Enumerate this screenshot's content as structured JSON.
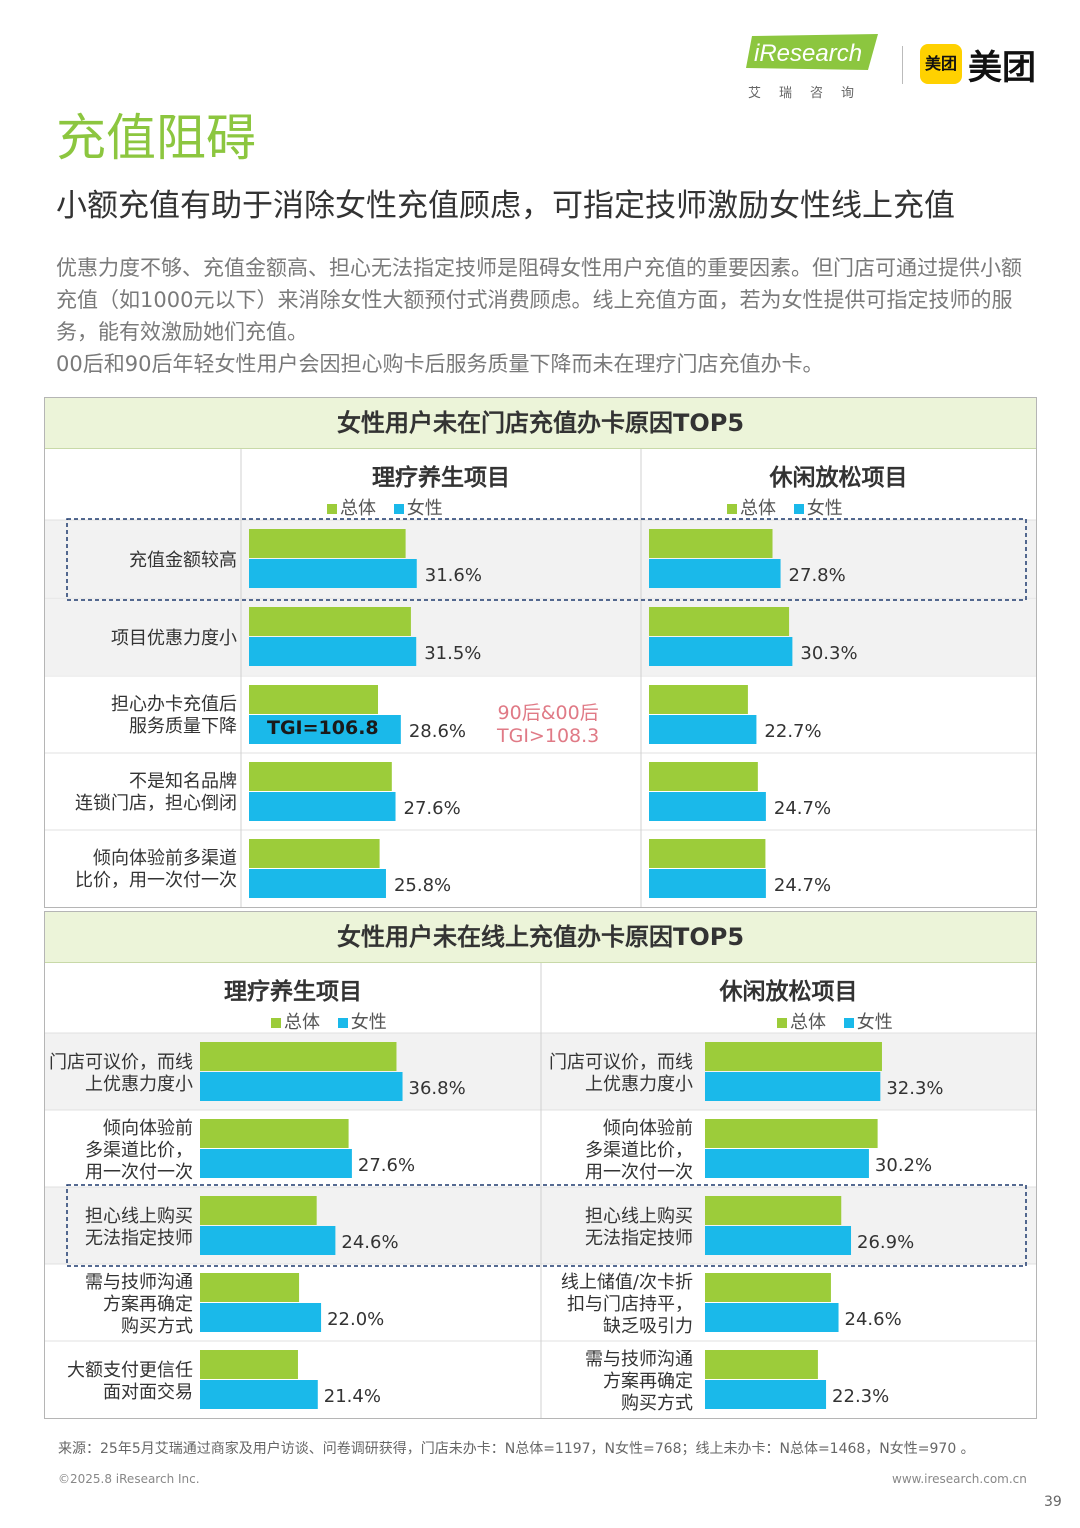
{
  "header": {
    "ir_logo": "iResearch",
    "ir_sub": "艾瑞咨询",
    "mt_badge": "美团",
    "mt_text": "美团"
  },
  "title": "充值阻碍",
  "subtitle": "小额充值有助于消除女性充值顾虑，可指定技师激励女性线上充值",
  "body": [
    "优惠力度不够、充值金额高、担心无法指定技师是阻碍女性用户充值的重要因素。但门店可通过提供小额充值（如1000元以下）来消除女性大额预付式消费顾虑。线上充值方面，若为女性提供可指定技师的服务，能有效激励她们充值。",
    "00后和90后年轻女性用户会因担心购卡后服务质量下降而未在理疗门店充值办卡。"
  ],
  "colors": {
    "overall": "#9ccc3a",
    "female": "#1ab9ea",
    "title_green": "#8cc63f",
    "highlight": "#1e3a6e"
  },
  "legend": {
    "overall": "总体",
    "female": "女性"
  },
  "chart_data": [
    {
      "type": "bar",
      "title": "女性用户未在门店充值办卡原因TOP5",
      "series_names": [
        "总体",
        "女性"
      ],
      "categories": [
        "充值金额较高",
        "项目优惠力度小",
        "担心办卡充值后\n服务质量下降",
        "不是知名品牌\n连锁门店，担心倒闭",
        "倾向体验前多渠道\n比价，用一次付一次"
      ],
      "panels": [
        {
          "name": "理疗养生项目",
          "overall": [
            29.5,
            30.5,
            24.3,
            26.9,
            24.6
          ],
          "female": [
            31.6,
            31.5,
            28.6,
            27.6,
            25.8
          ],
          "labels": [
            "31.6%",
            "31.5%",
            "28.6%",
            "27.6%",
            "25.8%"
          ]
        },
        {
          "name": "休闲放松项目",
          "overall": [
            26.1,
            29.6,
            20.9,
            23.0,
            24.6
          ],
          "female": [
            27.8,
            30.3,
            22.7,
            24.7,
            24.7
          ],
          "labels": [
            "27.8%",
            "30.3%",
            "22.7%",
            "24.7%",
            "24.7%"
          ]
        }
      ],
      "xlim": [
        0,
        40
      ],
      "highlight_row": 0,
      "annotations": {
        "tgi": "TGI=106.8",
        "note": "90后&00后\nTGI>108.3"
      }
    },
    {
      "type": "bar",
      "title": "女性用户未在线上充值办卡原因TOP5",
      "series_names": [
        "总体",
        "女性"
      ],
      "panels": [
        {
          "name": "理疗养生项目",
          "categories": [
            "门店可议价，而线\n上优惠力度小",
            "倾向体验前\n多渠道比价，\n用一次付一次",
            "担心线上购买\n无法指定技师",
            "需与技师沟通\n方案再确定\n购买方式",
            "大额支付更信任\n面对面交易"
          ],
          "overall": [
            35.7,
            27.0,
            21.2,
            18.0,
            17.8
          ],
          "female": [
            36.8,
            27.6,
            24.6,
            22.0,
            21.4
          ],
          "labels": [
            "36.8%",
            "27.6%",
            "24.6%",
            "22.0%",
            "21.4%"
          ]
        },
        {
          "name": "休闲放松项目",
          "categories": [
            "门店可议价，而线\n上优惠力度小",
            "倾向体验前\n多渠道比价，\n用一次付一次",
            "担心线上购买\n无法指定技师",
            "线上储值/次卡折\n扣与门店持平，\n缺乏吸引力",
            "需与技师沟通\n方案再确定\n购买方式"
          ],
          "overall": [
            32.6,
            31.8,
            25.1,
            23.2,
            20.8
          ],
          "female": [
            32.3,
            30.2,
            26.9,
            24.6,
            22.3
          ],
          "labels": [
            "32.3%",
            "30.2%",
            "26.9%",
            "24.6%",
            "22.3%"
          ]
        }
      ],
      "xlim": [
        0,
        40
      ],
      "highlight_row": 2
    }
  ],
  "footer": {
    "source": "来源：25年5月艾瑞通过商家及用户访谈、问卷调研获得，门店未办卡：N总体=1197，N女性=768；线上未办卡：N总体=1468，N女性=970 。",
    "copyright": "©2025.8 iResearch Inc.",
    "website": "www.iresearch.com.cn",
    "page": "39"
  }
}
